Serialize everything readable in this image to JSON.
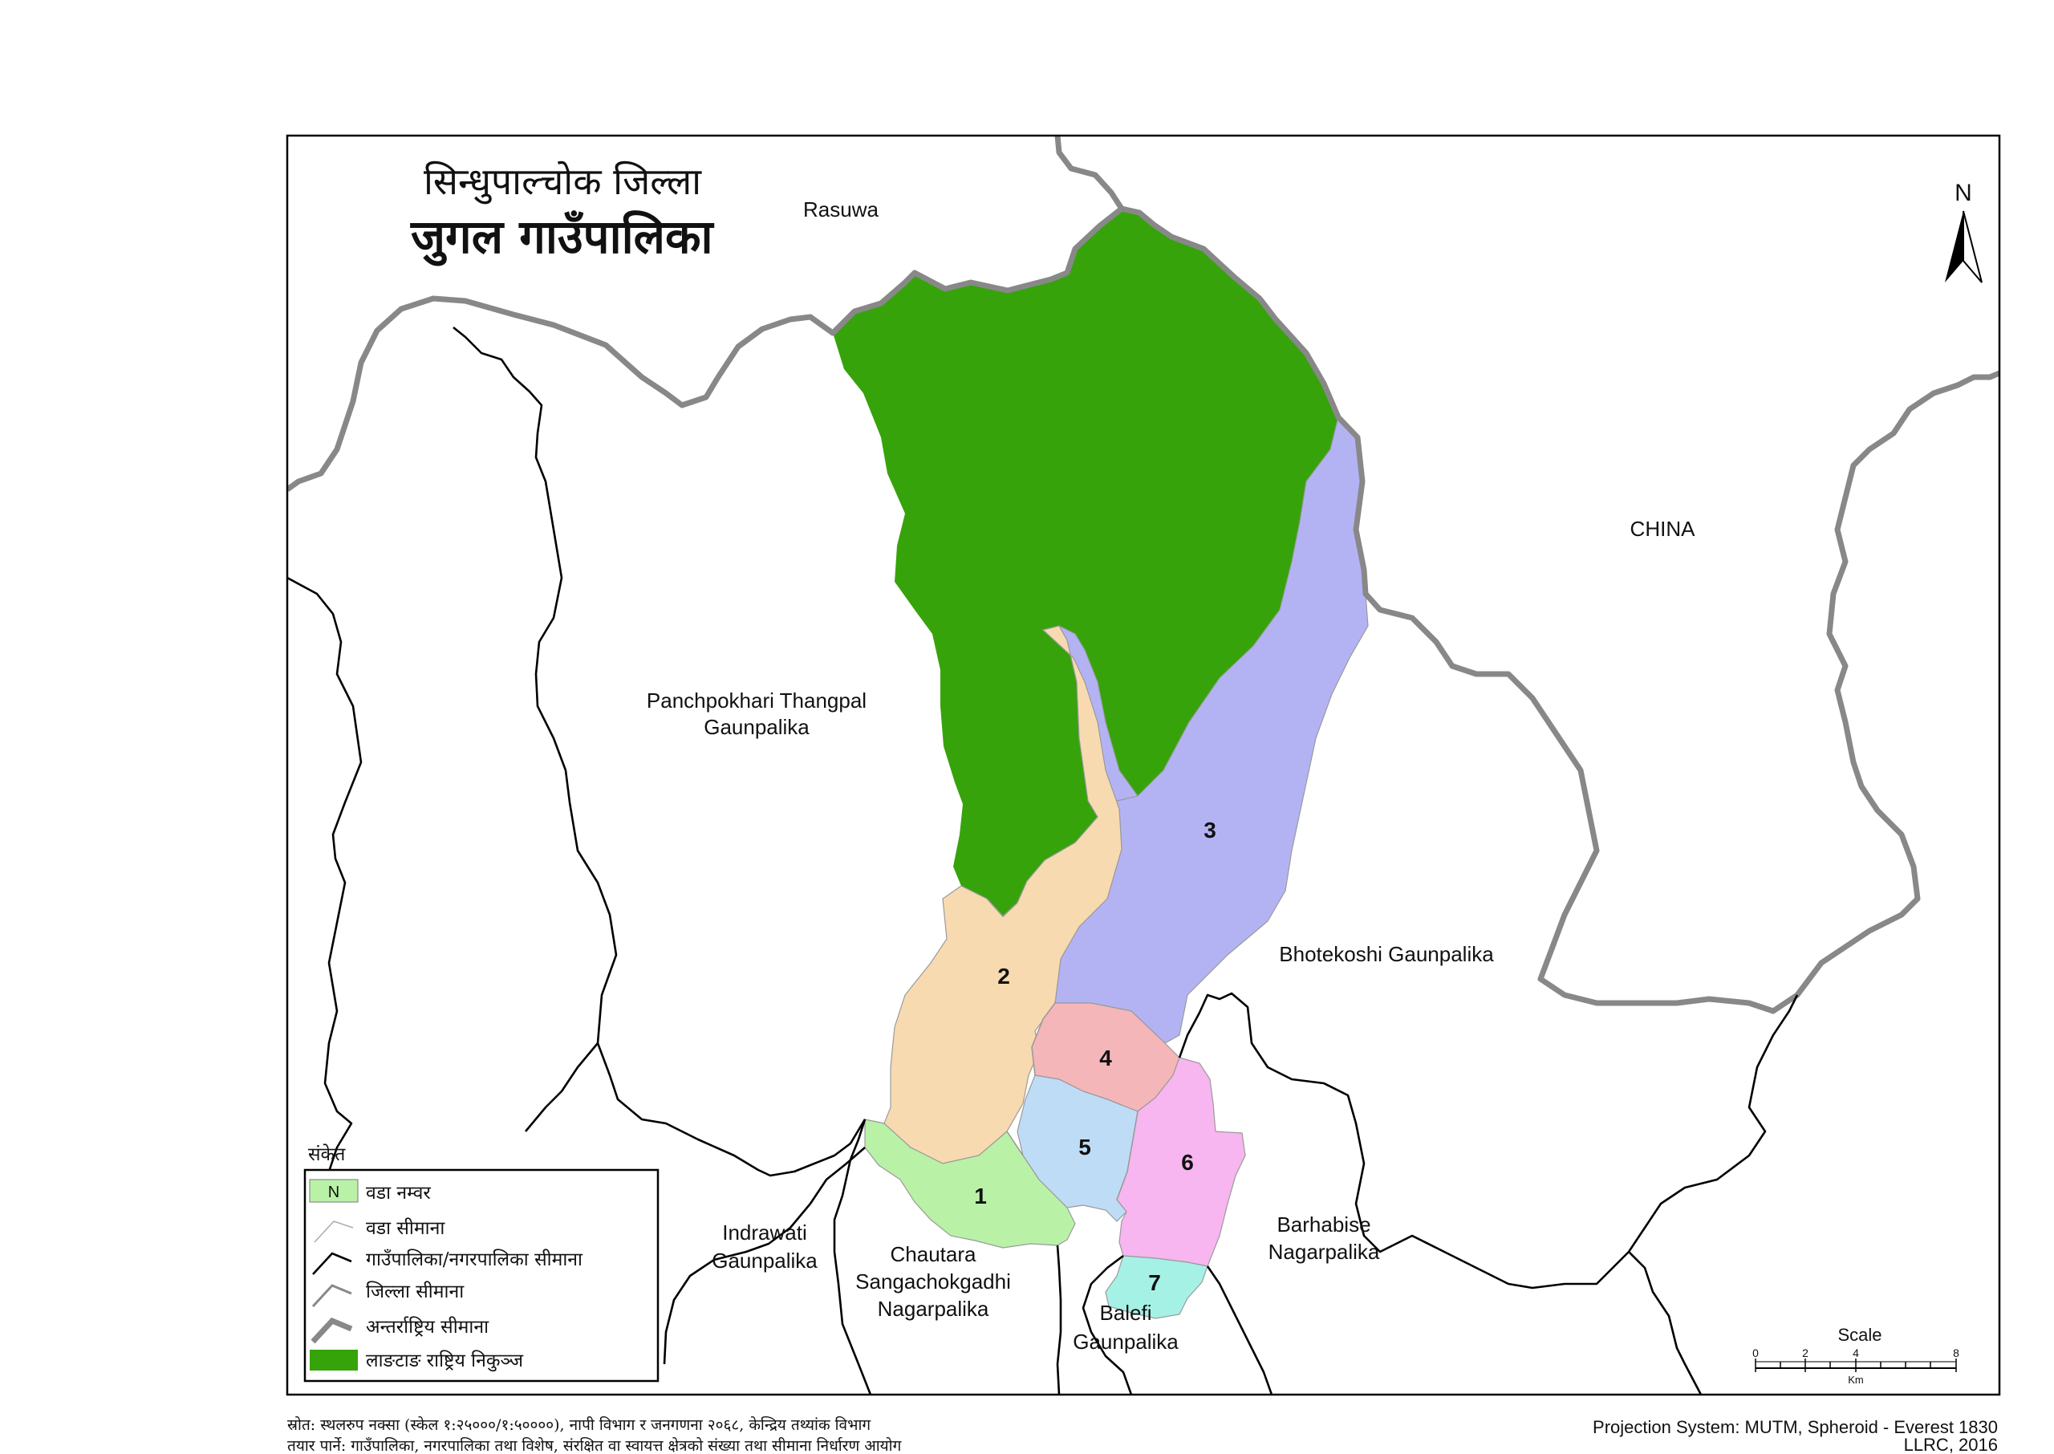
{
  "title": {
    "line1": "सिन्धुपाल्चोक जिल्ला",
    "line2": "जुगल गाउँपालिका"
  },
  "north": {
    "label": "N"
  },
  "colors": {
    "national_park": "#36a30b",
    "ward1": "#b9f2a6",
    "ward2": "#f8dab1",
    "ward3": "#b3b3f4",
    "ward4": "#f5b6b9",
    "ward5": "#bfdcf6",
    "ward6": "#f7b6ef",
    "ward7": "#a5f1e6",
    "district_boundary": "#888888",
    "municipal_boundary": "#000000"
  },
  "places": {
    "rasuwa": "Rasuwa",
    "china": "CHINA",
    "panchpokhari_1": "Panchpokhari Thangpal",
    "panchpokhari_2": "Gaunpalika",
    "bhotekoshi": "Bhotekoshi Gaunpalika",
    "indrawati_1": "Indrawati",
    "indrawati_2": "Gaunpalika",
    "chautara_1": "Chautara",
    "chautara_2": "Sangachokgadhi",
    "chautara_3": "Nagarpalika",
    "barhabise_1": "Barhabise",
    "barhabise_2": "Nagarpalika",
    "balefi_1": "Balefi",
    "balefi_2": "Gaunpalika"
  },
  "wards": [
    "1",
    "2",
    "3",
    "4",
    "5",
    "6",
    "7"
  ],
  "legend": {
    "heading": "संकेत",
    "items": [
      {
        "swatch": "N",
        "label": "वडा नम्वर"
      },
      {
        "label": "वडा सीमाना"
      },
      {
        "label": "गाउँपालिका/नगरपालिका सीमाना"
      },
      {
        "label": "जिल्ला सीमाना"
      },
      {
        "label": "अन्तर्राष्ट्रिय सीमाना"
      },
      {
        "label": "लाङटाङ राष्ट्रिय निकुञ्ज"
      }
    ]
  },
  "scale": {
    "title": "Scale",
    "ticks": [
      "0",
      "2",
      "4",
      "8"
    ],
    "unit": "Km"
  },
  "footer": {
    "source": "स्रोत: स्थलरुप नक्सा (स्केल १:२५०००/१:५००००), नापी विभाग र जनगणना २०६८, केन्द्रिय तथ्यांक विभाग",
    "prepared": "तयार पार्ने: गाउँपालिका, नगरपालिका तथा विशेष, संरक्षित वा स्वायत्त क्षेत्रको संख्या तथा सीमाना निर्धारण आयोग",
    "projection": "Projection System: MUTM, Spheroid - Everest 1830",
    "credit": "LLRC, 2016"
  }
}
